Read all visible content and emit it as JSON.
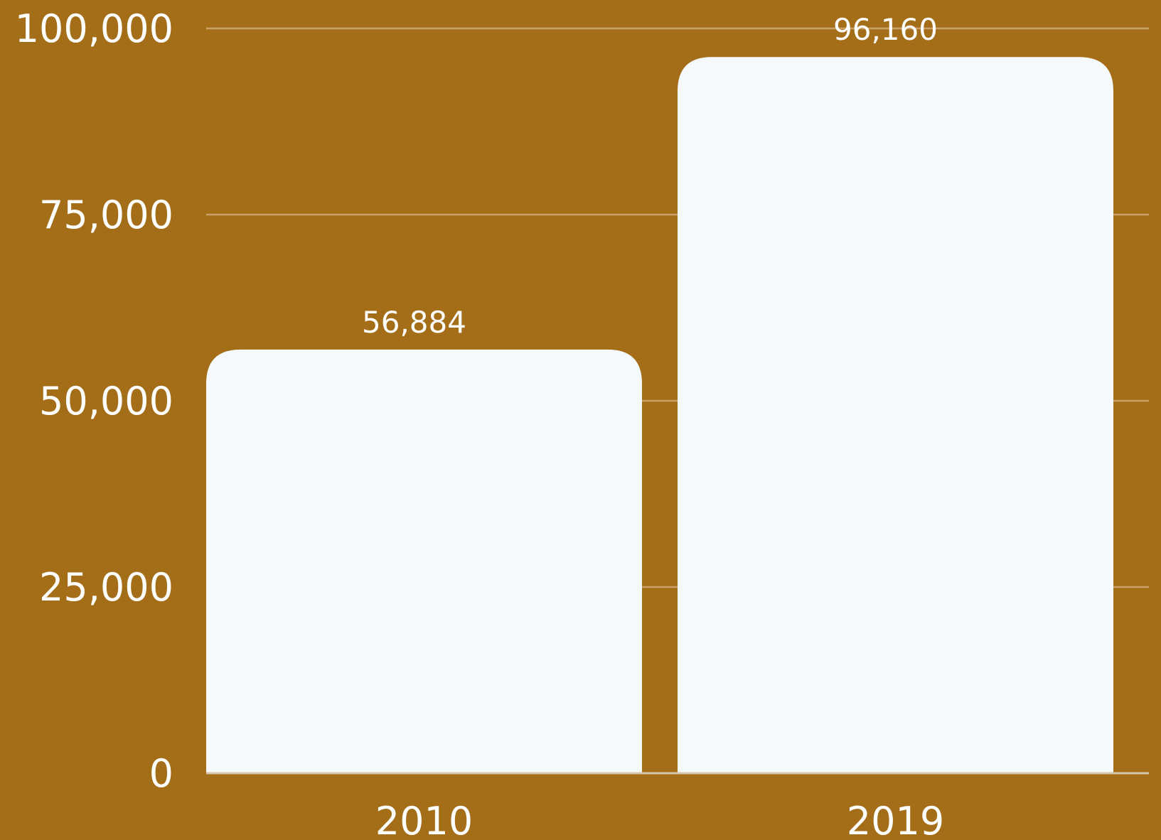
{
  "colors": {
    "background": "#a46d17",
    "bar": "#f5f9fc",
    "grid": "#c9a06a",
    "text": "#ffffff"
  },
  "chart_data": {
    "type": "bar",
    "categories": [
      "2010",
      "2019"
    ],
    "values": [
      56884,
      96160
    ],
    "value_labels": [
      "56,884",
      "96,160"
    ],
    "ylim": [
      0,
      100000
    ],
    "yticks": [
      0,
      25000,
      50000,
      75000,
      100000
    ],
    "ytick_labels": [
      "0",
      "25,000",
      "50,000",
      "75,000",
      "100,000"
    ],
    "grid": true,
    "legend": false
  }
}
